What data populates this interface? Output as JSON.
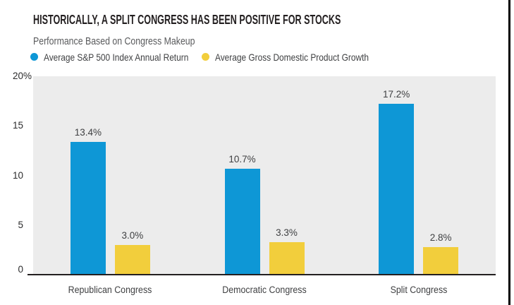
{
  "header": {
    "title": "HISTORICALLY, A SPLIT CONGRESS HAS BEEN POSITIVE FOR STOCKS",
    "subtitle": "Performance Based on Congress Makeup"
  },
  "legend": [
    {
      "label": "Average S&P 500 Index Annual Return",
      "color": "#0e97d6",
      "marker": "circle"
    },
    {
      "label": "Average Gross Domestic Product Growth",
      "color": "#f2ce3c",
      "marker": "circle"
    }
  ],
  "chart_data": {
    "type": "bar",
    "title": "HISTORICALLY, A SPLIT CONGRESS HAS BEEN POSITIVE FOR STOCKS",
    "subtitle": "Performance Based on Congress Makeup",
    "categories": [
      "Republican Congress",
      "Democratic Congress",
      "Split Congress"
    ],
    "series": [
      {
        "name": "Average S&P 500 Index Annual Return",
        "color": "#0e97d6",
        "values": [
          13.4,
          10.7,
          17.2
        ],
        "labels": [
          "13.4%",
          "10.7%",
          "17.2%"
        ]
      },
      {
        "name": "Average Gross Domestic Product Growth",
        "color": "#f2ce3c",
        "values": [
          3.0,
          3.3,
          2.8
        ],
        "labels": [
          "3.0%",
          "3.3%",
          "2.8%"
        ]
      }
    ],
    "ylim": [
      0,
      20
    ],
    "yticks": [
      {
        "value": 20,
        "label": "20",
        "suffix": "%"
      },
      {
        "value": 15,
        "label": "15"
      },
      {
        "value": 10,
        "label": "10"
      },
      {
        "value": 5,
        "label": "5"
      },
      {
        "value": 0,
        "label": "0"
      }
    ],
    "grid": false,
    "legend_position": "top",
    "plot_background": "#ececec",
    "axis_line_color": "#231f20"
  },
  "colors": {
    "accent_blue": "#0e97d6",
    "accent_yellow": "#f2ce3c",
    "title_text": "#231f20",
    "subtitle_text": "#595a5c",
    "body_text": "#3f4042",
    "plot_background": "#ececec",
    "frame_rule": "#000000"
  }
}
